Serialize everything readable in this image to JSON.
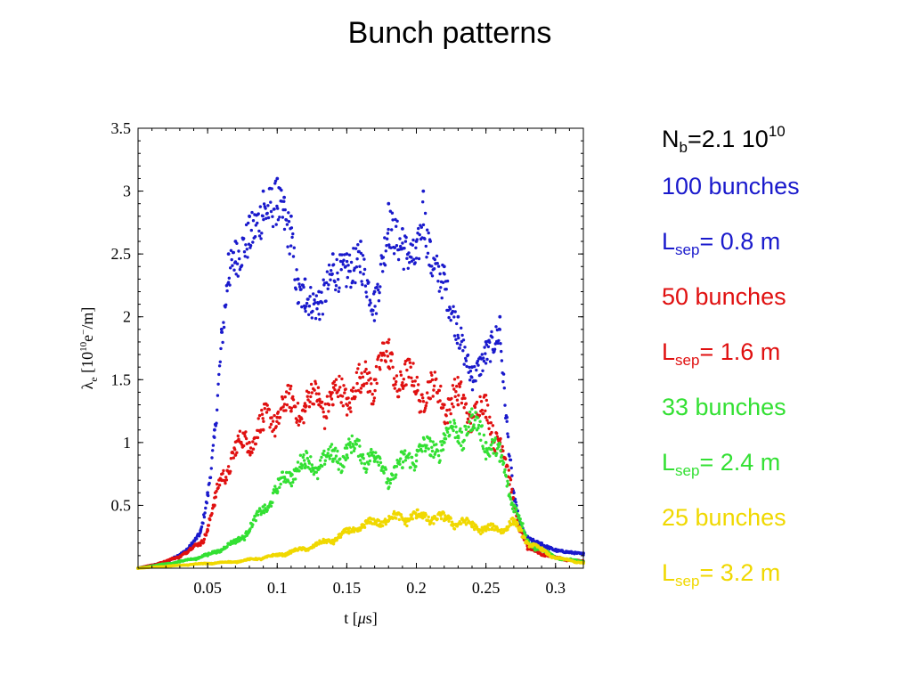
{
  "title": "Bunch patterns",
  "legend": {
    "intensity": {
      "base": "N",
      "sub": "b",
      "mid": "=2.1 10",
      "sup": "10",
      "tail": "",
      "color": "#000000"
    },
    "entries": [
      {
        "text": "100 bunches",
        "color": "#1a1acc"
      },
      {
        "base": "L",
        "sub": "sep",
        "tail": "= 0.8 m",
        "color": "#1a1acc"
      },
      {
        "text": "50 bunches",
        "color": "#e01010"
      },
      {
        "base": "L",
        "sub": "sep",
        "tail": "= 1.6 m",
        "color": "#e01010"
      },
      {
        "text": "33 bunches",
        "color": "#33e033"
      },
      {
        "base": "L",
        "sub": "sep",
        "tail": "= 2.4 m",
        "color": "#33e033"
      },
      {
        "text": "25 bunches",
        "color": "#f0d800"
      },
      {
        "base": "L",
        "sub": "sep",
        "tail": "= 3.2 m",
        "color": "#f0d800"
      }
    ]
  },
  "chart_data": {
    "type": "scatter",
    "xlabel": "t [μs]",
    "ylabel": "λe [10¹⁰e⁻/m]",
    "xlim": [
      0,
      0.32
    ],
    "ylim": [
      0,
      3.5
    ],
    "xticks": [
      0.05,
      0.1,
      0.15,
      0.2,
      0.25,
      0.3
    ],
    "xtick_labels": [
      "0.05",
      "0.1",
      "0.15",
      "0.2",
      "0.25",
      "0.3"
    ],
    "yticks": [
      0.5,
      1,
      1.5,
      2,
      2.5,
      3,
      3.5
    ],
    "ytick_labels": [
      "0.5",
      "1",
      "1.5",
      "2",
      "2.5",
      "3",
      "3.5"
    ],
    "grid": false,
    "series": [
      {
        "color": "#1a1acc",
        "x": [
          0.0,
          0.02,
          0.035,
          0.045,
          0.05,
          0.055,
          0.06,
          0.065,
          0.07,
          0.08,
          0.09,
          0.1,
          0.105,
          0.11,
          0.115,
          0.12,
          0.13,
          0.14,
          0.15,
          0.16,
          0.17,
          0.18,
          0.19,
          0.2,
          0.205,
          0.21,
          0.22,
          0.23,
          0.24,
          0.25,
          0.26,
          0.265,
          0.27,
          0.275,
          0.28,
          0.29,
          0.3,
          0.32
        ],
        "y": [
          0.0,
          0.05,
          0.15,
          0.3,
          0.6,
          1.1,
          1.9,
          2.5,
          2.6,
          2.8,
          3.0,
          3.1,
          2.95,
          2.8,
          2.3,
          2.3,
          2.2,
          2.5,
          2.5,
          2.6,
          2.2,
          2.9,
          2.7,
          2.6,
          3.0,
          2.6,
          2.4,
          2.0,
          1.6,
          1.8,
          2.0,
          1.2,
          0.6,
          0.35,
          0.25,
          0.2,
          0.15,
          0.12
        ]
      },
      {
        "color": "#e01010",
        "x": [
          0.0,
          0.02,
          0.035,
          0.045,
          0.05,
          0.055,
          0.06,
          0.07,
          0.08,
          0.09,
          0.1,
          0.11,
          0.12,
          0.13,
          0.14,
          0.15,
          0.16,
          0.17,
          0.18,
          0.19,
          0.2,
          0.21,
          0.22,
          0.23,
          0.24,
          0.25,
          0.26,
          0.27,
          0.275,
          0.28,
          0.3,
          0.32
        ],
        "y": [
          0.0,
          0.05,
          0.12,
          0.2,
          0.3,
          0.5,
          0.7,
          0.9,
          1.0,
          1.1,
          1.2,
          1.25,
          1.25,
          1.3,
          1.3,
          1.35,
          1.4,
          1.5,
          1.6,
          1.45,
          1.4,
          1.35,
          1.3,
          1.3,
          1.2,
          1.2,
          1.0,
          0.5,
          0.3,
          0.15,
          0.08,
          0.05
        ]
      },
      {
        "color": "#33e033",
        "x": [
          0.0,
          0.03,
          0.05,
          0.07,
          0.08,
          0.09,
          0.1,
          0.11,
          0.12,
          0.13,
          0.14,
          0.15,
          0.16,
          0.17,
          0.18,
          0.19,
          0.2,
          0.21,
          0.22,
          0.23,
          0.24,
          0.25,
          0.26,
          0.27,
          0.28,
          0.3,
          0.32
        ],
        "y": [
          0.0,
          0.05,
          0.1,
          0.2,
          0.3,
          0.45,
          0.6,
          0.75,
          0.8,
          0.8,
          0.85,
          0.9,
          0.9,
          0.85,
          0.7,
          0.8,
          0.9,
          0.9,
          1.0,
          1.05,
          1.1,
          1.0,
          0.85,
          0.5,
          0.2,
          0.08,
          0.05
        ]
      },
      {
        "color": "#f0d800",
        "x": [
          0.0,
          0.04,
          0.07,
          0.09,
          0.1,
          0.12,
          0.14,
          0.16,
          0.18,
          0.2,
          0.22,
          0.24,
          0.25,
          0.26,
          0.27,
          0.28,
          0.3,
          0.32
        ],
        "y": [
          0.0,
          0.03,
          0.05,
          0.08,
          0.1,
          0.15,
          0.22,
          0.32,
          0.38,
          0.4,
          0.38,
          0.33,
          0.3,
          0.3,
          0.35,
          0.2,
          0.08,
          0.04
        ]
      }
    ]
  }
}
